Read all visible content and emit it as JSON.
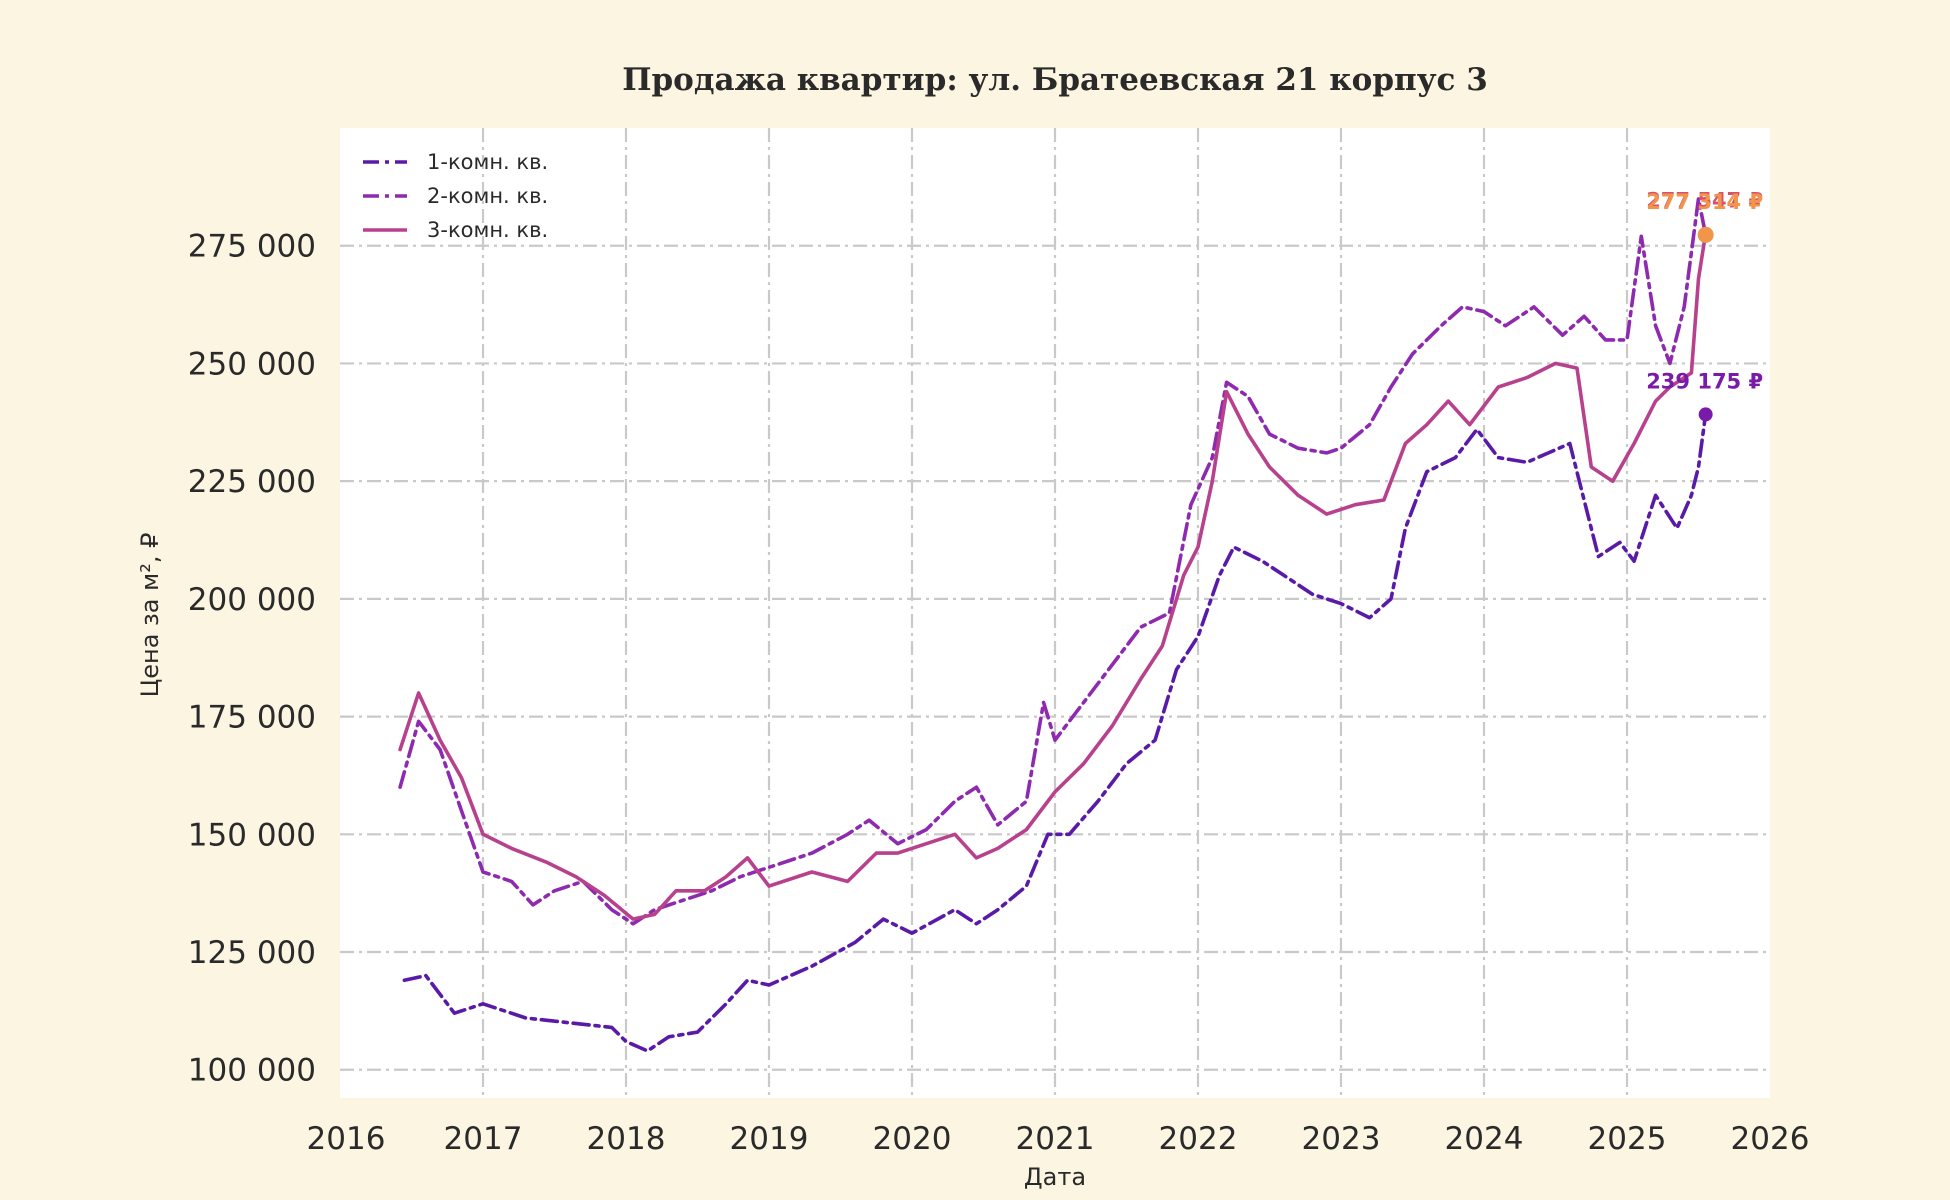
{
  "chart_data": {
    "type": "line",
    "title": "Продажа квартир: ул. Братеевская 21 корпус 3",
    "xlabel": "Дата",
    "ylabel": "Цена за м², ₽",
    "xlim": [
      2016.0,
      2026.0
    ],
    "ylim": [
      94000,
      300000
    ],
    "x_ticks": [
      "2016",
      "2017",
      "2018",
      "2019",
      "2020",
      "2021",
      "2022",
      "2023",
      "2024",
      "2025",
      "2026"
    ],
    "y_ticks": [
      100000,
      125000,
      150000,
      175000,
      200000,
      225000,
      250000,
      275000
    ],
    "y_tick_labels": [
      "100 000",
      "125 000",
      "150 000",
      "175 000",
      "200 000",
      "225 000",
      "250 000",
      "275 000"
    ],
    "grid": true,
    "legend_position": "top-left",
    "series": [
      {
        "name": "1-комн. кв.",
        "color": "#5a1aa8",
        "line_style": "dashdot",
        "points": [
          [
            2016.45,
            119000
          ],
          [
            2016.6,
            120000
          ],
          [
            2016.8,
            112000
          ],
          [
            2017.0,
            114000
          ],
          [
            2017.3,
            111000
          ],
          [
            2017.6,
            110000
          ],
          [
            2017.9,
            109000
          ],
          [
            2018.0,
            106000
          ],
          [
            2018.15,
            104000
          ],
          [
            2018.3,
            107000
          ],
          [
            2018.5,
            108000
          ],
          [
            2018.7,
            114000
          ],
          [
            2018.85,
            119000
          ],
          [
            2019.0,
            118000
          ],
          [
            2019.3,
            122000
          ],
          [
            2019.6,
            127000
          ],
          [
            2019.8,
            132000
          ],
          [
            2020.0,
            129000
          ],
          [
            2020.3,
            134000
          ],
          [
            2020.45,
            131000
          ],
          [
            2020.6,
            134000
          ],
          [
            2020.8,
            139000
          ],
          [
            2020.95,
            150000
          ],
          [
            2021.1,
            150000
          ],
          [
            2021.3,
            157000
          ],
          [
            2021.5,
            165000
          ],
          [
            2021.7,
            170000
          ],
          [
            2021.85,
            185000
          ],
          [
            2022.0,
            192000
          ],
          [
            2022.15,
            205000
          ],
          [
            2022.25,
            211000
          ],
          [
            2022.45,
            208000
          ],
          [
            2022.6,
            205000
          ],
          [
            2022.8,
            201000
          ],
          [
            2023.0,
            199000
          ],
          [
            2023.2,
            196000
          ],
          [
            2023.35,
            200000
          ],
          [
            2023.45,
            215000
          ],
          [
            2023.6,
            227000
          ],
          [
            2023.8,
            230000
          ],
          [
            2023.95,
            236000
          ],
          [
            2024.1,
            230000
          ],
          [
            2024.3,
            229000
          ],
          [
            2024.45,
            231000
          ],
          [
            2024.6,
            233000
          ],
          [
            2024.8,
            209000
          ],
          [
            2024.95,
            212000
          ],
          [
            2025.05,
            208000
          ],
          [
            2025.2,
            222000
          ],
          [
            2025.35,
            215000
          ],
          [
            2025.45,
            222000
          ],
          [
            2025.5,
            228000
          ],
          [
            2025.55,
            239175
          ]
        ]
      },
      {
        "name": "2-комн. кв.",
        "color": "#8e2ab0",
        "line_style": "dashdot",
        "points": [
          [
            2016.42,
            160000
          ],
          [
            2016.55,
            174000
          ],
          [
            2016.7,
            168000
          ],
          [
            2016.85,
            155000
          ],
          [
            2017.0,
            142000
          ],
          [
            2017.2,
            140000
          ],
          [
            2017.35,
            135000
          ],
          [
            2017.5,
            138000
          ],
          [
            2017.7,
            140000
          ],
          [
            2017.9,
            134000
          ],
          [
            2018.05,
            131000
          ],
          [
            2018.2,
            134000
          ],
          [
            2018.4,
            136000
          ],
          [
            2018.6,
            138000
          ],
          [
            2018.8,
            141000
          ],
          [
            2019.0,
            143000
          ],
          [
            2019.3,
            146000
          ],
          [
            2019.55,
            150000
          ],
          [
            2019.7,
            153000
          ],
          [
            2019.9,
            148000
          ],
          [
            2020.1,
            151000
          ],
          [
            2020.3,
            157000
          ],
          [
            2020.45,
            160000
          ],
          [
            2020.6,
            152000
          ],
          [
            2020.8,
            157000
          ],
          [
            2020.92,
            178000
          ],
          [
            2021.0,
            170000
          ],
          [
            2021.2,
            178000
          ],
          [
            2021.4,
            186000
          ],
          [
            2021.6,
            194000
          ],
          [
            2021.8,
            197000
          ],
          [
            2021.95,
            220000
          ],
          [
            2022.1,
            230000
          ],
          [
            2022.2,
            246000
          ],
          [
            2022.35,
            243000
          ],
          [
            2022.5,
            235000
          ],
          [
            2022.7,
            232000
          ],
          [
            2022.9,
            231000
          ],
          [
            2023.0,
            232000
          ],
          [
            2023.2,
            237000
          ],
          [
            2023.35,
            245000
          ],
          [
            2023.5,
            252000
          ],
          [
            2023.7,
            258000
          ],
          [
            2023.85,
            262000
          ],
          [
            2024.0,
            261000
          ],
          [
            2024.15,
            258000
          ],
          [
            2024.35,
            262000
          ],
          [
            2024.55,
            256000
          ],
          [
            2024.7,
            260000
          ],
          [
            2024.85,
            255000
          ],
          [
            2025.0,
            255000
          ],
          [
            2025.1,
            277000
          ],
          [
            2025.2,
            258000
          ],
          [
            2025.3,
            250000
          ],
          [
            2025.4,
            262000
          ],
          [
            2025.5,
            285000
          ],
          [
            2025.55,
            277314
          ]
        ]
      },
      {
        "name": "3-комн. кв.",
        "color": "#b8418e",
        "line_style": "solid",
        "points": [
          [
            2016.42,
            168000
          ],
          [
            2016.55,
            180000
          ],
          [
            2016.7,
            170000
          ],
          [
            2016.85,
            162000
          ],
          [
            2017.0,
            150000
          ],
          [
            2017.2,
            147000
          ],
          [
            2017.45,
            144000
          ],
          [
            2017.65,
            141000
          ],
          [
            2017.85,
            137000
          ],
          [
            2018.05,
            132000
          ],
          [
            2018.2,
            133000
          ],
          [
            2018.35,
            138000
          ],
          [
            2018.55,
            138000
          ],
          [
            2018.7,
            141000
          ],
          [
            2018.85,
            145000
          ],
          [
            2019.0,
            139000
          ],
          [
            2019.3,
            142000
          ],
          [
            2019.55,
            140000
          ],
          [
            2019.75,
            146000
          ],
          [
            2019.9,
            146000
          ],
          [
            2020.1,
            148000
          ],
          [
            2020.3,
            150000
          ],
          [
            2020.45,
            145000
          ],
          [
            2020.6,
            147000
          ],
          [
            2020.8,
            151000
          ],
          [
            2021.0,
            159000
          ],
          [
            2021.2,
            165000
          ],
          [
            2021.4,
            173000
          ],
          [
            2021.6,
            183000
          ],
          [
            2021.75,
            190000
          ],
          [
            2021.9,
            205000
          ],
          [
            2022.0,
            211000
          ],
          [
            2022.1,
            225000
          ],
          [
            2022.2,
            244000
          ],
          [
            2022.35,
            235000
          ],
          [
            2022.5,
            228000
          ],
          [
            2022.7,
            222000
          ],
          [
            2022.9,
            218000
          ],
          [
            2023.1,
            220000
          ],
          [
            2023.3,
            221000
          ],
          [
            2023.45,
            233000
          ],
          [
            2023.6,
            237000
          ],
          [
            2023.75,
            242000
          ],
          [
            2023.9,
            237000
          ],
          [
            2024.1,
            245000
          ],
          [
            2024.3,
            247000
          ],
          [
            2024.5,
            250000
          ],
          [
            2024.65,
            249000
          ],
          [
            2024.75,
            228000
          ],
          [
            2024.9,
            225000
          ],
          [
            2025.05,
            233000
          ],
          [
            2025.2,
            242000
          ],
          [
            2025.3,
            245000
          ],
          [
            2025.45,
            248000
          ],
          [
            2025.5,
            268000
          ],
          [
            2025.55,
            277547
          ]
        ]
      }
    ],
    "end_points": [
      {
        "series": "1-комн. кв.",
        "x": 2025.55,
        "y": 239175,
        "label": "239 175 ₽",
        "color": "#7a1aa8"
      },
      {
        "series": "3-комн. кв.",
        "x": 2025.55,
        "y": 277547,
        "label": "277 547 ₽",
        "color": "#d9506e"
      },
      {
        "series": "2-комн. кв.",
        "x": 2025.55,
        "y": 277314,
        "label": "277 314 ₽",
        "color": "#f0954a"
      }
    ]
  }
}
